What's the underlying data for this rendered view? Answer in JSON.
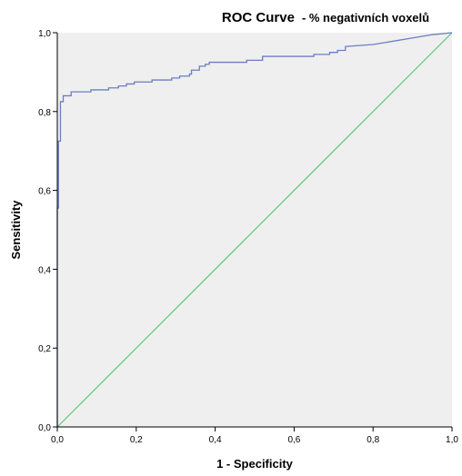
{
  "chart_data": {
    "type": "line",
    "title": "ROC Curve",
    "subtitle": "- % negativních voxelů",
    "xlabel": "1 - Specificity",
    "ylabel": "Sensitivity",
    "xlim": [
      0,
      1
    ],
    "ylim": [
      0,
      1
    ],
    "x_ticks": [
      "0,0",
      "0,2",
      "0,4",
      "0,6",
      "0,8",
      "1,0"
    ],
    "y_ticks": [
      "0,0",
      "0,2",
      "0,4",
      "0,6",
      "0,8",
      "1,0"
    ],
    "grid": false,
    "colors": {
      "plot_background": "#efefef",
      "roc_line": "#6a7fc0",
      "reference_line": "#5cc878",
      "axis": "#000000"
    },
    "series": [
      {
        "role": "roc",
        "x": [
          0.0,
          0.0,
          0.003,
          0.003,
          0.008,
          0.008,
          0.015,
          0.015,
          0.035,
          0.035,
          0.085,
          0.085,
          0.13,
          0.13,
          0.155,
          0.155,
          0.175,
          0.175,
          0.195,
          0.195,
          0.24,
          0.24,
          0.29,
          0.29,
          0.31,
          0.31,
          0.335,
          0.335,
          0.34,
          0.34,
          0.36,
          0.36,
          0.375,
          0.375,
          0.385,
          0.385,
          0.48,
          0.48,
          0.52,
          0.52,
          0.65,
          0.65,
          0.69,
          0.69,
          0.71,
          0.71,
          0.73,
          0.73,
          0.8,
          0.83,
          0.86,
          0.89,
          0.95,
          1.0
        ],
        "y": [
          0.0,
          0.555,
          0.555,
          0.725,
          0.725,
          0.825,
          0.825,
          0.84,
          0.84,
          0.85,
          0.85,
          0.855,
          0.855,
          0.86,
          0.86,
          0.865,
          0.865,
          0.87,
          0.87,
          0.875,
          0.875,
          0.88,
          0.88,
          0.885,
          0.885,
          0.89,
          0.89,
          0.895,
          0.895,
          0.905,
          0.905,
          0.915,
          0.915,
          0.92,
          0.92,
          0.925,
          0.925,
          0.93,
          0.93,
          0.94,
          0.94,
          0.945,
          0.945,
          0.95,
          0.95,
          0.955,
          0.955,
          0.965,
          0.97,
          0.975,
          0.98,
          0.985,
          0.995,
          1.0
        ]
      },
      {
        "role": "reference",
        "x": [
          0,
          1
        ],
        "y": [
          0,
          1
        ]
      }
    ]
  }
}
